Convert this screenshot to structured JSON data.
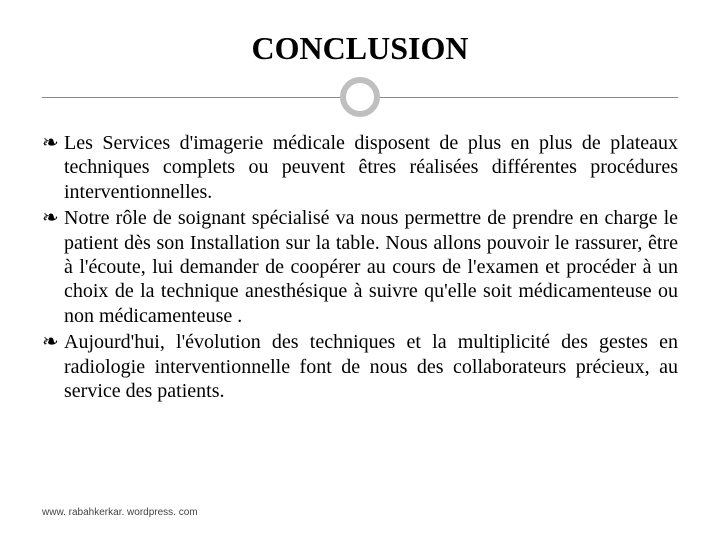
{
  "title": "CONCLUSION",
  "bullets": [
    "Les Services d'imagerie médicale disposent de plus en plus de plateaux techniques complets ou peuvent êtres réalisées différentes procédures interventionnelles.",
    "Notre rôle de soignant spécialisé va nous permettre de prendre en charge le patient dès son Installation sur la table. Nous allons pouvoir le rassurer, être à l'écoute, lui demander de coopérer au cours de l'examen et procéder à un choix de la technique anesthésique à suivre qu'elle soit médicamenteuse ou non médicamenteuse .",
    "Aujourd'hui, l'évolution des techniques et la multiplicité des gestes en radiologie  interventionnelle font de nous des collaborateurs précieux, au service des patients."
  ],
  "bullet_glyph": "❧",
  "footer": "www. rabahkerkar. wordpress. com",
  "colors": {
    "background": "#ffffff",
    "text": "#000000",
    "divider_line": "#888888",
    "circle_border": "#bfbfbf",
    "footer_text": "#444444"
  },
  "typography": {
    "title_fontsize": 32,
    "body_fontsize": 20,
    "footer_fontsize": 10,
    "font_family_title": "Georgia",
    "font_family_body": "Georgia",
    "font_family_footer": "Arial"
  },
  "layout": {
    "slide_width": 720,
    "slide_height": 540,
    "circle_diameter": 40,
    "circle_border_width": 6
  }
}
